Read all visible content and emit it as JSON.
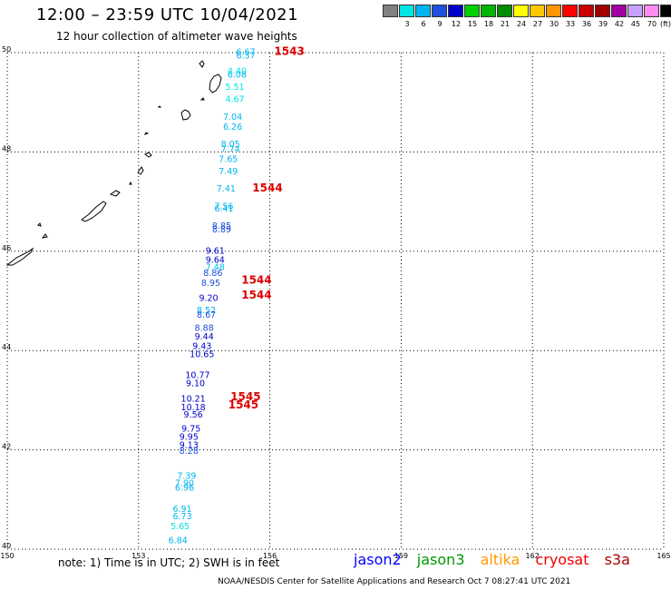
{
  "header": {
    "title": "12:00 – 23:59 UTC 10/04/2021",
    "subtitle": "12 hour collection of altimeter wave heights"
  },
  "legend": {
    "unit": "(ft)",
    "items": [
      {
        "color": "#808080",
        "label": ""
      },
      {
        "color": "#00e5e5",
        "label": "3"
      },
      {
        "color": "#00b4f0",
        "label": "6"
      },
      {
        "color": "#1e50dc",
        "label": "9"
      },
      {
        "color": "#0000c8",
        "label": "12"
      },
      {
        "color": "#00d000",
        "label": "15"
      },
      {
        "color": "#00b400",
        "label": "18"
      },
      {
        "color": "#008c00",
        "label": "21"
      },
      {
        "color": "#ffff00",
        "label": "24"
      },
      {
        "color": "#ffc800",
        "label": "27"
      },
      {
        "color": "#ff9600",
        "label": "30"
      },
      {
        "color": "#ff0000",
        "label": "33"
      },
      {
        "color": "#c80000",
        "label": "36"
      },
      {
        "color": "#a00000",
        "label": "39"
      },
      {
        "color": "#a000a0",
        "label": "42"
      },
      {
        "color": "#c8a0ff",
        "label": "45"
      },
      {
        "color": "#ff8cf0",
        "label": "70"
      },
      {
        "color": "#000000",
        "label": ""
      }
    ]
  },
  "map": {
    "lon_range": [
      150,
      165
    ],
    "lat_range": [
      40,
      50
    ],
    "lon_ticks": [
      "150",
      "153",
      "156",
      "159",
      "162",
      "165"
    ],
    "lat_ticks": [
      "40",
      "42",
      "44",
      "46",
      "48",
      "50"
    ],
    "passes": [
      {
        "label": "1543",
        "lon": 156.1,
        "lat": 49.95
      },
      {
        "label": "1544",
        "lon": 155.6,
        "lat": 47.2
      },
      {
        "label": "1544",
        "lon": 155.35,
        "lat": 45.35
      },
      {
        "label": "1544",
        "lon": 155.35,
        "lat": 45.05
      },
      {
        "label": "1545",
        "lon": 155.1,
        "lat": 43.0
      },
      {
        "label": "1545",
        "lon": 155.05,
        "lat": 42.83
      }
    ],
    "observations": [
      {
        "v": "6.67",
        "lon": 155.45,
        "lat": 49.95,
        "c": "#00b4f0"
      },
      {
        "v": "6.37",
        "lon": 155.45,
        "lat": 49.88,
        "c": "#00b4f0"
      },
      {
        "v": "4.40",
        "lon": 155.25,
        "lat": 49.57,
        "c": "#00e5e5"
      },
      {
        "v": "6.08",
        "lon": 155.25,
        "lat": 49.5,
        "c": "#00b4f0"
      },
      {
        "v": "5.51",
        "lon": 155.2,
        "lat": 49.25,
        "c": "#00e5e5"
      },
      {
        "v": "4.67",
        "lon": 155.2,
        "lat": 49.0,
        "c": "#00e5e5"
      },
      {
        "v": "7.04",
        "lon": 155.15,
        "lat": 48.65,
        "c": "#00b4f0"
      },
      {
        "v": "6.26",
        "lon": 155.15,
        "lat": 48.45,
        "c": "#00b4f0"
      },
      {
        "v": "8.05",
        "lon": 155.1,
        "lat": 48.1,
        "c": "#00b4f0"
      },
      {
        "v": "7.74",
        "lon": 155.1,
        "lat": 48.0,
        "c": "#00b4f0"
      },
      {
        "v": "7.65",
        "lon": 155.05,
        "lat": 47.8,
        "c": "#00b4f0"
      },
      {
        "v": "7.49",
        "lon": 155.05,
        "lat": 47.55,
        "c": "#00b4f0"
      },
      {
        "v": "7.41",
        "lon": 155.0,
        "lat": 47.2,
        "c": "#00b4f0"
      },
      {
        "v": "7.56",
        "lon": 154.95,
        "lat": 46.85,
        "c": "#00b4f0"
      },
      {
        "v": "6.41",
        "lon": 154.95,
        "lat": 46.8,
        "c": "#00b4f0"
      },
      {
        "v": "8.85",
        "lon": 154.9,
        "lat": 46.45,
        "c": "#1e50dc"
      },
      {
        "v": "8.89",
        "lon": 154.9,
        "lat": 46.38,
        "c": "#1e50dc"
      },
      {
        "v": "9.61",
        "lon": 154.75,
        "lat": 45.95,
        "c": "#0000c8"
      },
      {
        "v": "9.64",
        "lon": 154.75,
        "lat": 45.77,
        "c": "#0000c8"
      },
      {
        "v": "7.48",
        "lon": 154.75,
        "lat": 45.62,
        "c": "#00b4f0"
      },
      {
        "v": "8.86",
        "lon": 154.7,
        "lat": 45.5,
        "c": "#1e50dc"
      },
      {
        "v": "8.95",
        "lon": 154.65,
        "lat": 45.3,
        "c": "#1e50dc"
      },
      {
        "v": "9.20",
        "lon": 154.6,
        "lat": 45.0,
        "c": "#0000c8"
      },
      {
        "v": "8.52",
        "lon": 154.55,
        "lat": 44.75,
        "c": "#00b4f0"
      },
      {
        "v": "8.67",
        "lon": 154.55,
        "lat": 44.66,
        "c": "#1e50dc"
      },
      {
        "v": "8.88",
        "lon": 154.5,
        "lat": 44.4,
        "c": "#1e50dc"
      },
      {
        "v": "9.44",
        "lon": 154.5,
        "lat": 44.22,
        "c": "#0000c8"
      },
      {
        "v": "9.43",
        "lon": 154.45,
        "lat": 44.03,
        "c": "#0000c8"
      },
      {
        "v": "10.65",
        "lon": 154.45,
        "lat": 43.87,
        "c": "#0000c8"
      },
      {
        "v": "10.77",
        "lon": 154.35,
        "lat": 43.45,
        "c": "#0000c8"
      },
      {
        "v": "9.10",
        "lon": 154.3,
        "lat": 43.28,
        "c": "#0000c8"
      },
      {
        "v": "10.21",
        "lon": 154.25,
        "lat": 42.97,
        "c": "#0000c8"
      },
      {
        "v": "10.18",
        "lon": 154.25,
        "lat": 42.8,
        "c": "#0000c8"
      },
      {
        "v": "9.56",
        "lon": 154.25,
        "lat": 42.65,
        "c": "#0000c8"
      },
      {
        "v": "9.75",
        "lon": 154.2,
        "lat": 42.37,
        "c": "#0000c8"
      },
      {
        "v": "9.95",
        "lon": 154.15,
        "lat": 42.2,
        "c": "#0000c8"
      },
      {
        "v": "9.13",
        "lon": 154.15,
        "lat": 42.04,
        "c": "#0000c8"
      },
      {
        "v": "8.28",
        "lon": 154.15,
        "lat": 41.92,
        "c": "#1e50dc"
      },
      {
        "v": "7.39",
        "lon": 154.1,
        "lat": 41.42,
        "c": "#00b4f0"
      },
      {
        "v": "7.90",
        "lon": 154.05,
        "lat": 41.27,
        "c": "#00b4f0"
      },
      {
        "v": "6.96",
        "lon": 154.05,
        "lat": 41.18,
        "c": "#00b4f0"
      },
      {
        "v": "6.91",
        "lon": 154.0,
        "lat": 40.75,
        "c": "#00b4f0"
      },
      {
        "v": "6.73",
        "lon": 154.0,
        "lat": 40.6,
        "c": "#00b4f0"
      },
      {
        "v": "5.65",
        "lon": 153.95,
        "lat": 40.4,
        "c": "#00e5e5"
      },
      {
        "v": "6.84",
        "lon": 153.9,
        "lat": 40.12,
        "c": "#00b4f0"
      }
    ]
  },
  "footer": {
    "note": "note:  1) Time is in UTC;  2) SWH is in feet",
    "satellites": [
      {
        "name": "jason2",
        "color": "#0000ff"
      },
      {
        "name": "jason3",
        "color": "#009900"
      },
      {
        "name": "altika",
        "color": "#ff9900"
      },
      {
        "name": "cryosat",
        "color": "#ee0000"
      },
      {
        "name": "s3a",
        "color": "#aa0000"
      }
    ],
    "credit": "NOAA/NESDIS Center for Satellite Applications and Research    Oct  7 08:27:41 UTC 2021"
  }
}
